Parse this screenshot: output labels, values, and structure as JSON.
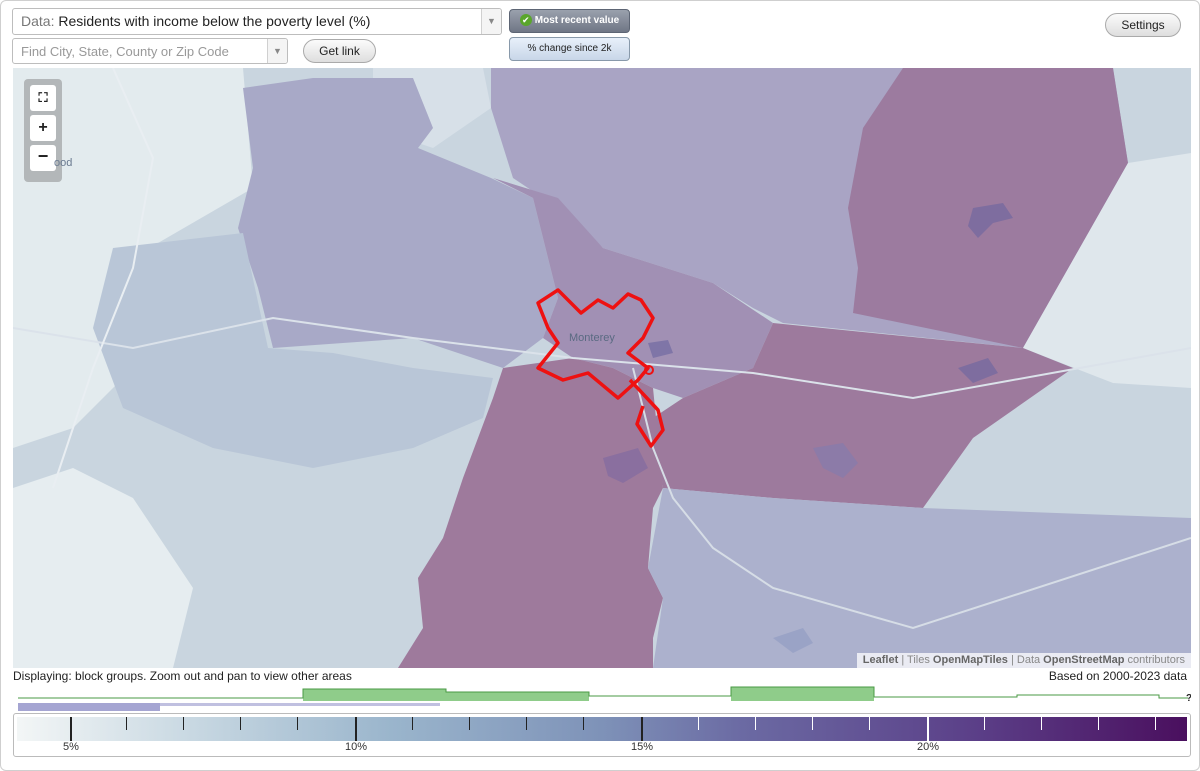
{
  "controls": {
    "data_prefix": "Data:",
    "data_value": "Residents with income below the poverty level (%)",
    "search_placeholder": "Find City, State, County or Zip Code",
    "get_link": "Get link",
    "toggle_active": "Most recent value",
    "toggle_inactive": "% change since 2k",
    "settings": "Settings"
  },
  "map": {
    "city_label": "Monterey",
    "partial_label": "ood",
    "zoom_fullscreen_icon": "fullscreen-icon",
    "zoom_in": "+",
    "zoom_out": "−",
    "attribution": {
      "leaflet": "Leaflet",
      "sep1": " | Tiles ",
      "tiles": "OpenMapTiles",
      "sep2": " | Data ",
      "data": "OpenStreetMap",
      "contributors": " contributors"
    },
    "colors": {
      "highlight_outline": "#ee1111",
      "low": "#c9d5df",
      "mid": "#a8a6c4",
      "high": "#9c7394"
    }
  },
  "footer": {
    "displaying": "Displaying: block groups. Zoom out and pan to view other areas",
    "based_on": "Based on 2000-2023 data",
    "unknown_marker": "?"
  },
  "legend": {
    "labels": [
      "5%",
      "10%",
      "15%",
      "20%"
    ],
    "colors": {
      "hist_green": "#8fcc8a",
      "hist_line": "#4a9a44",
      "hist_purple": "#a5a5d2"
    }
  }
}
